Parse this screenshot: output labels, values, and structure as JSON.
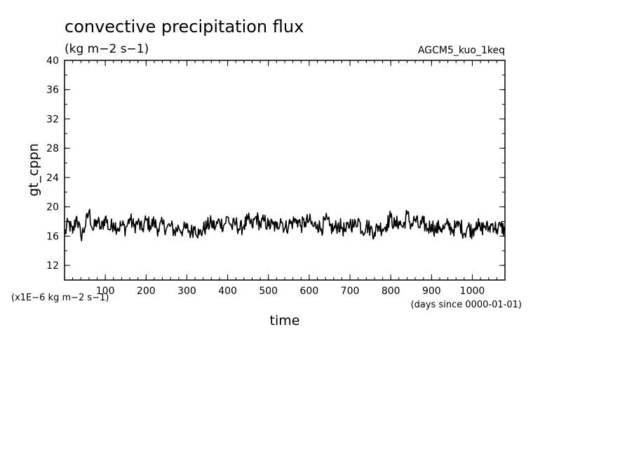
{
  "chart_data": {
    "type": "line",
    "title": "convective precipitation flux",
    "units": "(kg m−2 s−1)",
    "experiment": "AGCM5_kuo_1keq",
    "xlabel": "time",
    "x_unit_note": "(days since 0000-01-01)",
    "ylabel": "gt_cppn",
    "y_scale_note": "(x1E−6 kg m−2 s−1)",
    "xlim": [
      0,
      1080
    ],
    "ylim": [
      10,
      40
    ],
    "x_ticks": [
      100,
      200,
      300,
      400,
      500,
      600,
      700,
      800,
      900,
      1000
    ],
    "y_ticks": [
      12,
      16,
      20,
      24,
      28,
      32,
      36,
      40
    ],
    "grid": false,
    "series": [
      {
        "color": "#000000",
        "x": [
          0,
          10,
          20,
          30,
          40,
          50,
          60,
          70,
          80,
          90,
          100,
          110,
          120,
          130,
          140,
          150,
          160,
          170,
          180,
          190,
          200,
          210,
          220,
          230,
          240,
          250,
          260,
          270,
          280,
          290,
          300,
          310,
          320,
          330,
          340,
          350,
          360,
          370,
          380,
          390,
          400,
          410,
          420,
          430,
          440,
          450,
          460,
          470,
          480,
          490,
          500,
          510,
          520,
          530,
          540,
          550,
          560,
          570,
          580,
          590,
          600,
          610,
          620,
          630,
          640,
          650,
          660,
          670,
          680,
          690,
          700,
          710,
          720,
          730,
          740,
          750,
          760,
          770,
          780,
          790,
          800,
          810,
          820,
          830,
          840,
          850,
          860,
          870,
          880,
          890,
          900,
          910,
          920,
          930,
          940,
          950,
          960,
          970,
          980,
          990,
          1000,
          1010,
          1020,
          1030,
          1040,
          1050,
          1060,
          1070,
          1080
        ],
        "values": [
          16.2,
          17.9,
          16.4,
          18.7,
          16.0,
          17.2,
          19.4,
          16.8,
          18.1,
          17.0,
          18.6,
          16.9,
          17.8,
          17.1,
          17.5,
          17.0,
          18.4,
          17.3,
          17.9,
          16.8,
          18.2,
          17.4,
          17.9,
          16.9,
          17.6,
          17.1,
          17.4,
          16.6,
          17.2,
          16.8,
          17.1,
          16.5,
          17.3,
          16.2,
          16.9,
          17.4,
          17.8,
          17.2,
          18.1,
          17.4,
          18.6,
          17.2,
          17.8,
          16.9,
          17.5,
          18.2,
          17.3,
          18.7,
          17.5,
          18.1,
          17.4,
          17.6,
          17.1,
          18.4,
          17.0,
          17.6,
          17.9,
          18.2,
          17.4,
          17.9,
          18.1,
          17.3,
          17.6,
          17.0,
          18.2,
          17.4,
          16.9,
          17.5,
          17.2,
          16.6,
          17.9,
          17.3,
          18.4,
          16.7,
          17.5,
          17.0,
          16.5,
          17.4,
          17.0,
          17.6,
          18.6,
          17.4,
          18.0,
          17.2,
          19.0,
          17.5,
          18.3,
          17.2,
          17.8,
          17.0,
          17.6,
          16.8,
          17.3,
          17.0,
          17.5,
          16.9,
          17.2,
          17.6,
          16.4,
          17.3,
          16.6,
          17.9,
          16.8,
          17.4,
          17.0,
          17.7,
          16.9,
          17.3,
          16.8
        ]
      }
    ]
  }
}
